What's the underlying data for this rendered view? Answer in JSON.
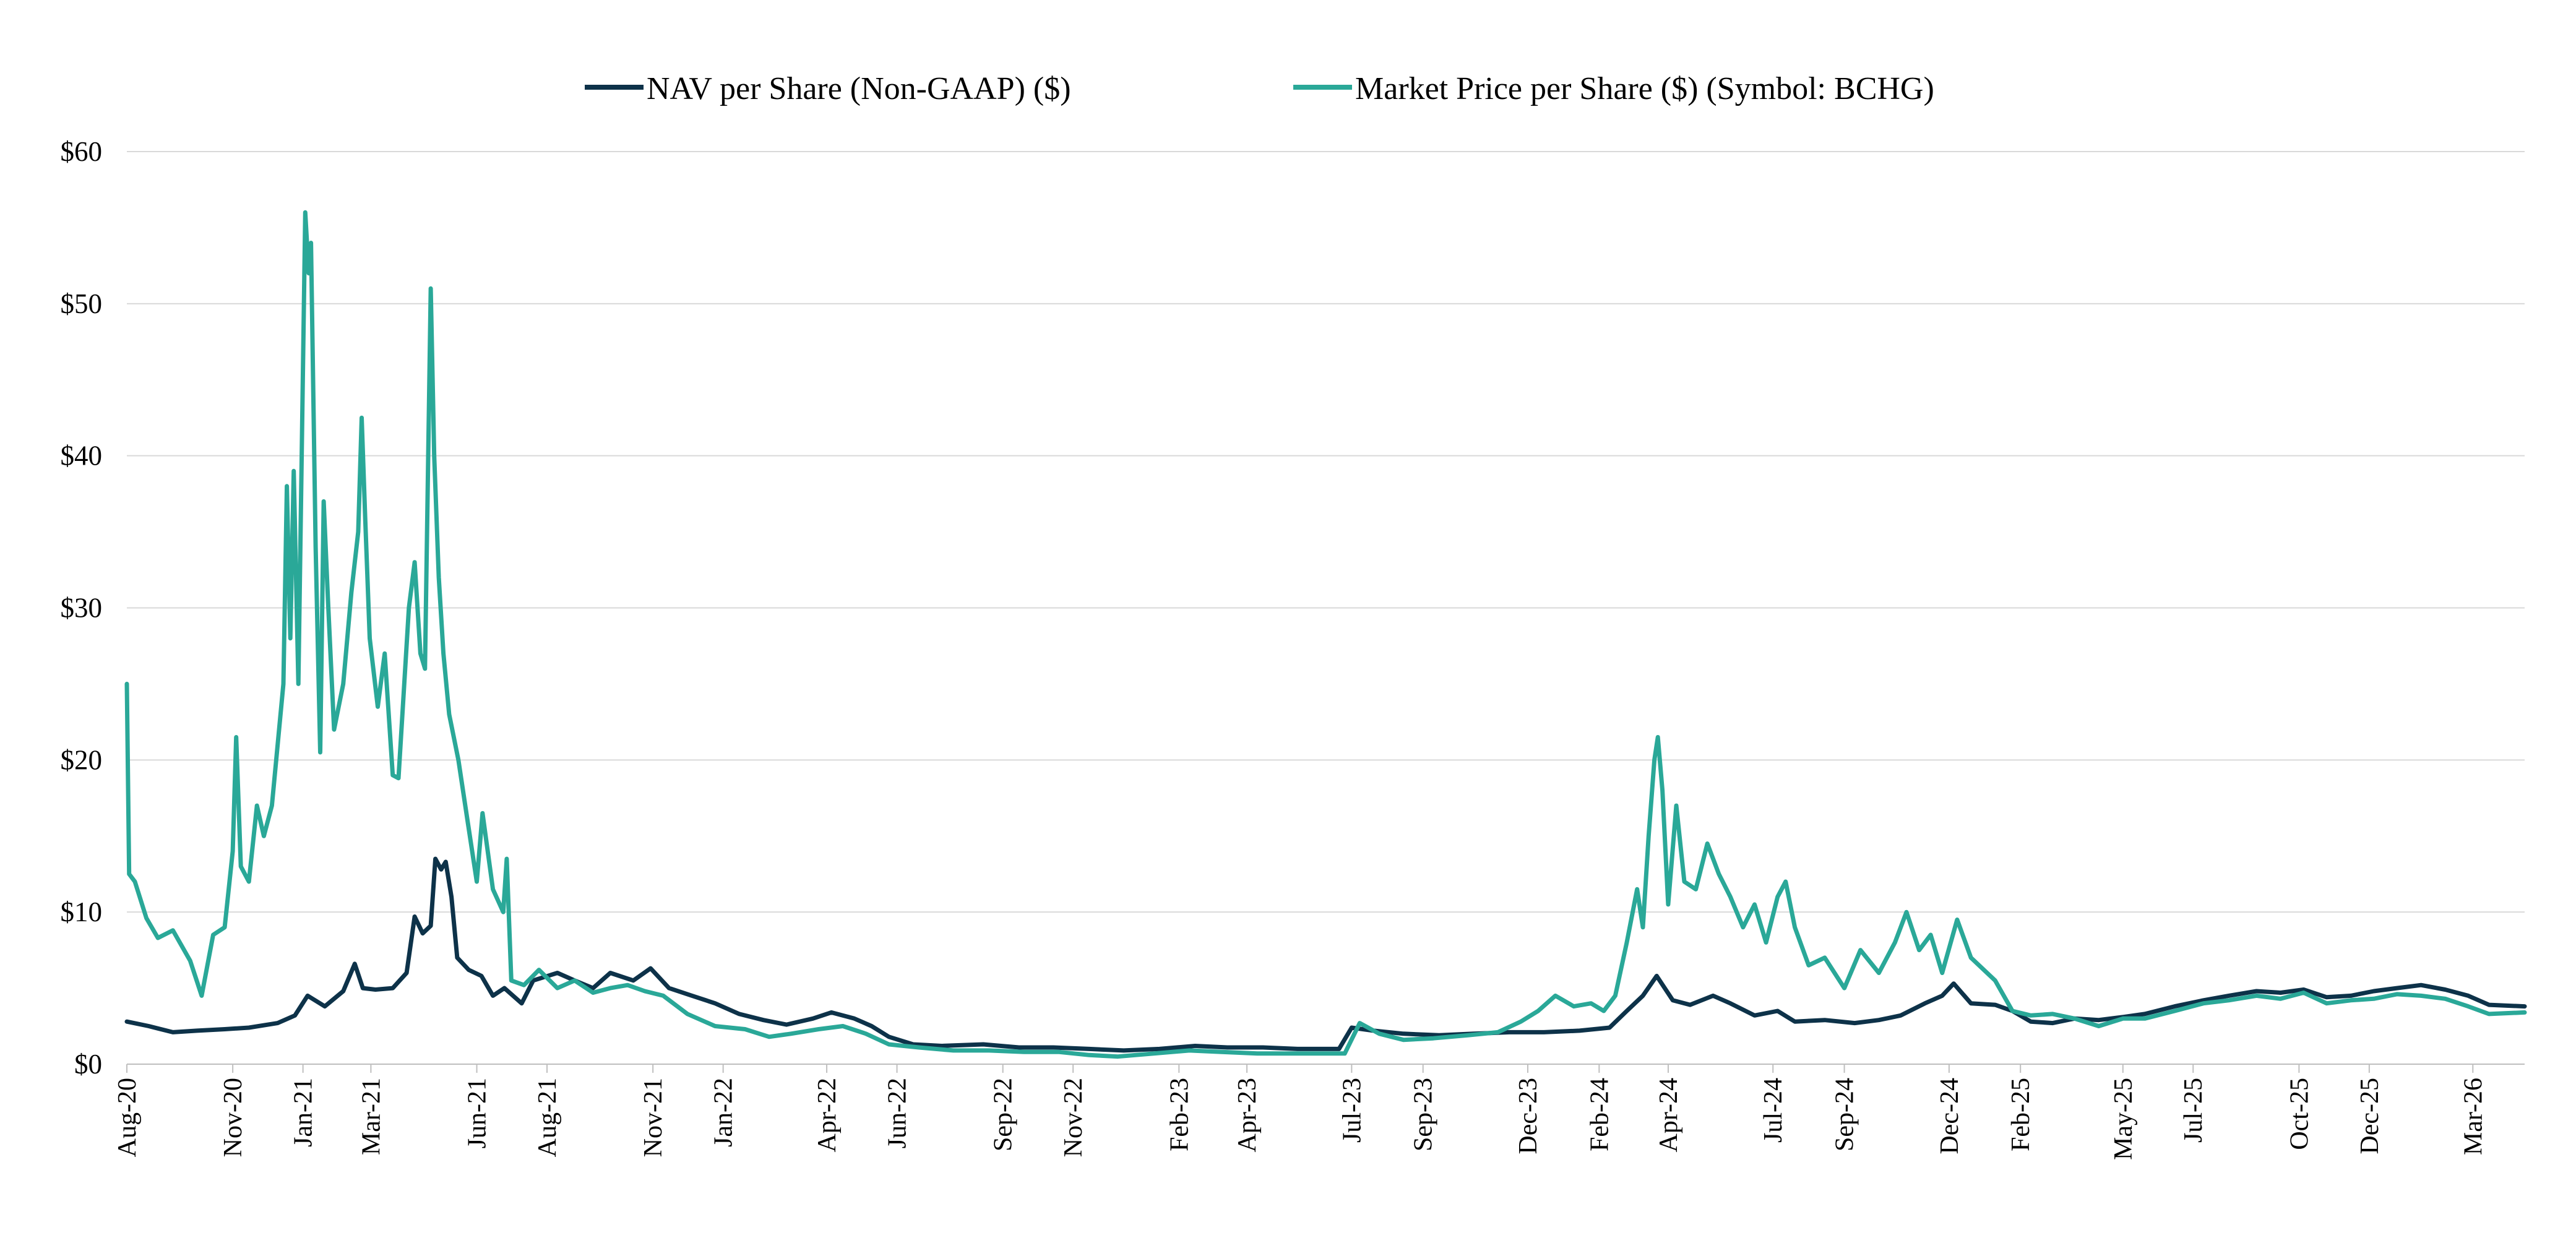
{
  "chart_data": {
    "type": "line",
    "title": "",
    "xlabel": "",
    "ylabel": "",
    "ylim": [
      0,
      60
    ],
    "y_ticks": [
      0,
      10,
      20,
      30,
      40,
      50,
      60
    ],
    "y_tick_labels": [
      "$0",
      "$10",
      "$20",
      "$30",
      "$40",
      "$50",
      "$60"
    ],
    "x_range": [
      "2020-08-01",
      "2026-04-15"
    ],
    "x_ticks": [
      "2020-08-01",
      "2020-11-01",
      "2021-01-01",
      "2021-03-01",
      "2021-06-01",
      "2021-08-01",
      "2021-11-01",
      "2022-01-01",
      "2022-04-01",
      "2022-06-01",
      "2022-09-01",
      "2022-11-01",
      "2023-02-01",
      "2023-04-01",
      "2023-07-01",
      "2023-09-01",
      "2023-12-01",
      "2024-02-01",
      "2024-04-01",
      "2024-07-01",
      "2024-09-01",
      "2024-12-01",
      "2025-02-01",
      "2025-05-01",
      "2025-07-01",
      "2025-10-01",
      "2025-12-01",
      "2026-03-01"
    ],
    "x_tick_labels": [
      "Aug-20",
      "Nov-20",
      "Jan-21",
      "Mar-21",
      "Jun-21",
      "Aug-21",
      "Nov-21",
      "Jan-22",
      "Apr-22",
      "Jun-22",
      "Sep-22",
      "Nov-22",
      "Feb-23",
      "Apr-23",
      "Jul-23",
      "Sep-23",
      "Dec-23",
      "Feb-24",
      "Apr-24",
      "Jul-24",
      "Sep-24",
      "Dec-24",
      "Feb-25",
      "May-25",
      "Jul-25",
      "Oct-25",
      "Dec-25",
      "Mar-26"
    ],
    "grid": true,
    "legend_position": "top-center",
    "series": [
      {
        "name": "NAV per Share (Non-GAAP) ($)",
        "color": "#0d3249",
        "points": [
          [
            "2020-08-01",
            2.8
          ],
          [
            "2020-08-20",
            2.5
          ],
          [
            "2020-09-10",
            2.1
          ],
          [
            "2020-10-01",
            2.2
          ],
          [
            "2020-10-25",
            2.3
          ],
          [
            "2020-11-15",
            2.4
          ],
          [
            "2020-12-10",
            2.7
          ],
          [
            "2020-12-25",
            3.2
          ],
          [
            "2021-01-05",
            4.5
          ],
          [
            "2021-01-20",
            3.8
          ],
          [
            "2021-02-05",
            4.8
          ],
          [
            "2021-02-15",
            6.6
          ],
          [
            "2021-02-22",
            5.0
          ],
          [
            "2021-03-05",
            4.9
          ],
          [
            "2021-03-20",
            5.0
          ],
          [
            "2021-04-01",
            6.0
          ],
          [
            "2021-04-08",
            9.7
          ],
          [
            "2021-04-15",
            8.6
          ],
          [
            "2021-04-22",
            9.1
          ],
          [
            "2021-04-26",
            13.5
          ],
          [
            "2021-05-01",
            12.8
          ],
          [
            "2021-05-05",
            13.3
          ],
          [
            "2021-05-10",
            11.0
          ],
          [
            "2021-05-15",
            7.0
          ],
          [
            "2021-05-25",
            6.2
          ],
          [
            "2021-06-05",
            5.8
          ],
          [
            "2021-06-15",
            4.5
          ],
          [
            "2021-06-25",
            5.0
          ],
          [
            "2021-07-10",
            4.0
          ],
          [
            "2021-07-20",
            5.5
          ],
          [
            "2021-08-10",
            6.0
          ],
          [
            "2021-08-25",
            5.5
          ],
          [
            "2021-09-10",
            5.0
          ],
          [
            "2021-09-25",
            6.0
          ],
          [
            "2021-10-15",
            5.5
          ],
          [
            "2021-10-30",
            6.3
          ],
          [
            "2021-11-15",
            5.0
          ],
          [
            "2021-12-05",
            4.5
          ],
          [
            "2021-12-25",
            4.0
          ],
          [
            "2022-01-15",
            3.3
          ],
          [
            "2022-02-05",
            2.9
          ],
          [
            "2022-02-25",
            2.6
          ],
          [
            "2022-03-20",
            3.0
          ],
          [
            "2022-04-05",
            3.4
          ],
          [
            "2022-04-25",
            3.0
          ],
          [
            "2022-05-10",
            2.5
          ],
          [
            "2022-05-25",
            1.8
          ],
          [
            "2022-06-15",
            1.3
          ],
          [
            "2022-07-10",
            1.2
          ],
          [
            "2022-08-15",
            1.3
          ],
          [
            "2022-09-15",
            1.1
          ],
          [
            "2022-10-15",
            1.1
          ],
          [
            "2022-11-15",
            1.0
          ],
          [
            "2022-12-15",
            0.9
          ],
          [
            "2023-01-15",
            1.0
          ],
          [
            "2023-02-15",
            1.2
          ],
          [
            "2023-03-15",
            1.1
          ],
          [
            "2023-04-15",
            1.1
          ],
          [
            "2023-05-15",
            1.0
          ],
          [
            "2023-06-20",
            1.0
          ],
          [
            "2023-07-01",
            2.4
          ],
          [
            "2023-07-20",
            2.2
          ],
          [
            "2023-08-15",
            2.0
          ],
          [
            "2023-09-15",
            1.9
          ],
          [
            "2023-10-15",
            2.0
          ],
          [
            "2023-11-15",
            2.1
          ],
          [
            "2023-12-15",
            2.1
          ],
          [
            "2024-01-15",
            2.2
          ],
          [
            "2024-02-10",
            2.4
          ],
          [
            "2024-02-25",
            3.5
          ],
          [
            "2024-03-10",
            4.5
          ],
          [
            "2024-03-22",
            5.8
          ],
          [
            "2024-04-05",
            4.2
          ],
          [
            "2024-04-20",
            3.9
          ],
          [
            "2024-05-10",
            4.5
          ],
          [
            "2024-05-25",
            4.0
          ],
          [
            "2024-06-15",
            3.2
          ],
          [
            "2024-07-05",
            3.5
          ],
          [
            "2024-07-20",
            2.8
          ],
          [
            "2024-08-15",
            2.9
          ],
          [
            "2024-09-10",
            2.7
          ],
          [
            "2024-10-01",
            2.9
          ],
          [
            "2024-10-20",
            3.2
          ],
          [
            "2024-11-10",
            4.0
          ],
          [
            "2024-11-25",
            4.5
          ],
          [
            "2024-12-05",
            5.3
          ],
          [
            "2024-12-20",
            4.0
          ],
          [
            "2025-01-10",
            3.9
          ],
          [
            "2025-01-25",
            3.5
          ],
          [
            "2025-02-10",
            2.8
          ],
          [
            "2025-03-01",
            2.7
          ],
          [
            "2025-03-20",
            3.0
          ],
          [
            "2025-04-10",
            2.9
          ],
          [
            "2025-05-01",
            3.1
          ],
          [
            "2025-05-20",
            3.3
          ],
          [
            "2025-06-15",
            3.8
          ],
          [
            "2025-07-10",
            4.2
          ],
          [
            "2025-08-01",
            4.5
          ],
          [
            "2025-08-25",
            4.8
          ],
          [
            "2025-09-15",
            4.7
          ],
          [
            "2025-10-05",
            4.9
          ],
          [
            "2025-10-25",
            4.4
          ],
          [
            "2025-11-15",
            4.5
          ],
          [
            "2025-12-05",
            4.8
          ],
          [
            "2025-12-25",
            5.0
          ],
          [
            "2026-01-15",
            5.2
          ],
          [
            "2026-02-05",
            4.9
          ],
          [
            "2026-02-25",
            4.5
          ],
          [
            "2026-03-15",
            3.9
          ],
          [
            "2026-04-15",
            3.8
          ]
        ]
      },
      {
        "name": "Market Price per Share ($) (Symbol: BCHG)",
        "color": "#2aa898",
        "points": [
          [
            "2020-08-01",
            25.0
          ],
          [
            "2020-08-03",
            12.5
          ],
          [
            "2020-08-08",
            12.0
          ],
          [
            "2020-08-18",
            9.6
          ],
          [
            "2020-08-28",
            8.3
          ],
          [
            "2020-09-10",
            8.8
          ],
          [
            "2020-09-25",
            6.8
          ],
          [
            "2020-10-05",
            4.5
          ],
          [
            "2020-10-15",
            8.5
          ],
          [
            "2020-10-25",
            9.0
          ],
          [
            "2020-11-01",
            14.0
          ],
          [
            "2020-11-04",
            21.5
          ],
          [
            "2020-11-08",
            13.0
          ],
          [
            "2020-11-15",
            12.0
          ],
          [
            "2020-11-22",
            17.0
          ],
          [
            "2020-11-28",
            15.0
          ],
          [
            "2020-12-05",
            17.0
          ],
          [
            "2020-12-15",
            25.0
          ],
          [
            "2020-12-18",
            38.0
          ],
          [
            "2020-12-21",
            28.0
          ],
          [
            "2020-12-24",
            39.0
          ],
          [
            "2020-12-28",
            25.0
          ],
          [
            "2021-01-03",
            56.0
          ],
          [
            "2021-01-06",
            52.0
          ],
          [
            "2021-01-08",
            54.0
          ],
          [
            "2021-01-12",
            34.0
          ],
          [
            "2021-01-16",
            20.5
          ],
          [
            "2021-01-19",
            37.0
          ],
          [
            "2021-01-23",
            30.0
          ],
          [
            "2021-01-28",
            22.0
          ],
          [
            "2021-02-05",
            25.0
          ],
          [
            "2021-02-12",
            31.0
          ],
          [
            "2021-02-18",
            35.0
          ],
          [
            "2021-02-21",
            42.5
          ],
          [
            "2021-02-24",
            36.0
          ],
          [
            "2021-02-28",
            28.0
          ],
          [
            "2021-03-07",
            23.5
          ],
          [
            "2021-03-13",
            27.0
          ],
          [
            "2021-03-20",
            19.0
          ],
          [
            "2021-03-25",
            18.8
          ],
          [
            "2021-04-03",
            30.0
          ],
          [
            "2021-04-08",
            33.0
          ],
          [
            "2021-04-13",
            27.0
          ],
          [
            "2021-04-17",
            26.0
          ],
          [
            "2021-04-22",
            51.0
          ],
          [
            "2021-04-25",
            40.0
          ],
          [
            "2021-04-29",
            32.0
          ],
          [
            "2021-05-03",
            27.0
          ],
          [
            "2021-05-08",
            23.0
          ],
          [
            "2021-05-16",
            20.0
          ],
          [
            "2021-05-24",
            16.0
          ],
          [
            "2021-06-01",
            12.0
          ],
          [
            "2021-06-06",
            16.5
          ],
          [
            "2021-06-15",
            11.5
          ],
          [
            "2021-06-24",
            10.0
          ],
          [
            "2021-06-27",
            13.5
          ],
          [
            "2021-07-01",
            5.5
          ],
          [
            "2021-07-12",
            5.2
          ],
          [
            "2021-07-25",
            6.2
          ],
          [
            "2021-08-10",
            5.0
          ],
          [
            "2021-08-25",
            5.5
          ],
          [
            "2021-09-10",
            4.7
          ],
          [
            "2021-09-25",
            5.0
          ],
          [
            "2021-10-10",
            5.2
          ],
          [
            "2021-10-25",
            4.8
          ],
          [
            "2021-11-10",
            4.5
          ],
          [
            "2021-12-01",
            3.3
          ],
          [
            "2021-12-25",
            2.5
          ],
          [
            "2022-01-20",
            2.3
          ],
          [
            "2022-02-10",
            1.8
          ],
          [
            "2022-03-01",
            2.0
          ],
          [
            "2022-03-25",
            2.3
          ],
          [
            "2022-04-15",
            2.5
          ],
          [
            "2022-05-05",
            2.0
          ],
          [
            "2022-05-25",
            1.3
          ],
          [
            "2022-06-20",
            1.1
          ],
          [
            "2022-07-20",
            0.9
          ],
          [
            "2022-08-20",
            0.9
          ],
          [
            "2022-09-20",
            0.8
          ],
          [
            "2022-10-20",
            0.8
          ],
          [
            "2022-11-15",
            0.6
          ],
          [
            "2022-12-10",
            0.5
          ],
          [
            "2023-01-10",
            0.7
          ],
          [
            "2023-02-10",
            0.9
          ],
          [
            "2023-03-10",
            0.8
          ],
          [
            "2023-04-10",
            0.7
          ],
          [
            "2023-05-10",
            0.7
          ],
          [
            "2023-06-25",
            0.7
          ],
          [
            "2023-07-08",
            2.7
          ],
          [
            "2023-07-25",
            2.0
          ],
          [
            "2023-08-15",
            1.6
          ],
          [
            "2023-09-10",
            1.7
          ],
          [
            "2023-10-10",
            1.9
          ],
          [
            "2023-11-05",
            2.1
          ],
          [
            "2023-11-25",
            2.8
          ],
          [
            "2023-12-10",
            3.5
          ],
          [
            "2023-12-25",
            4.5
          ],
          [
            "2024-01-10",
            3.8
          ],
          [
            "2024-01-25",
            4.0
          ],
          [
            "2024-02-05",
            3.5
          ],
          [
            "2024-02-15",
            4.5
          ],
          [
            "2024-02-25",
            8.0
          ],
          [
            "2024-03-05",
            11.5
          ],
          [
            "2024-03-10",
            9.0
          ],
          [
            "2024-03-15",
            15.0
          ],
          [
            "2024-03-20",
            20.0
          ],
          [
            "2024-03-23",
            21.5
          ],
          [
            "2024-03-27",
            18.0
          ],
          [
            "2024-04-01",
            10.5
          ],
          [
            "2024-04-08",
            17.0
          ],
          [
            "2024-04-15",
            12.0
          ],
          [
            "2024-04-25",
            11.5
          ],
          [
            "2024-05-05",
            14.5
          ],
          [
            "2024-05-15",
            12.5
          ],
          [
            "2024-05-25",
            11.0
          ],
          [
            "2024-06-05",
            9.0
          ],
          [
            "2024-06-15",
            10.5
          ],
          [
            "2024-06-25",
            8.0
          ],
          [
            "2024-07-05",
            11.0
          ],
          [
            "2024-07-12",
            12.0
          ],
          [
            "2024-07-20",
            9.0
          ],
          [
            "2024-08-01",
            6.5
          ],
          [
            "2024-08-15",
            7.0
          ],
          [
            "2024-09-01",
            5.0
          ],
          [
            "2024-09-15",
            7.5
          ],
          [
            "2024-10-01",
            6.0
          ],
          [
            "2024-10-15",
            8.0
          ],
          [
            "2024-10-25",
            10.0
          ],
          [
            "2024-11-05",
            7.5
          ],
          [
            "2024-11-15",
            8.5
          ],
          [
            "2024-11-25",
            6.0
          ],
          [
            "2024-12-08",
            9.5
          ],
          [
            "2024-12-20",
            7.0
          ],
          [
            "2025-01-10",
            5.5
          ],
          [
            "2025-01-25",
            3.5
          ],
          [
            "2025-02-10",
            3.2
          ],
          [
            "2025-03-01",
            3.3
          ],
          [
            "2025-03-20",
            3.0
          ],
          [
            "2025-04-10",
            2.5
          ],
          [
            "2025-05-01",
            3.0
          ],
          [
            "2025-05-20",
            3.0
          ],
          [
            "2025-06-15",
            3.5
          ],
          [
            "2025-07-10",
            4.0
          ],
          [
            "2025-08-01",
            4.2
          ],
          [
            "2025-08-25",
            4.5
          ],
          [
            "2025-09-15",
            4.3
          ],
          [
            "2025-10-05",
            4.7
          ],
          [
            "2025-10-25",
            4.0
          ],
          [
            "2025-11-15",
            4.2
          ],
          [
            "2025-12-05",
            4.3
          ],
          [
            "2025-12-25",
            4.6
          ],
          [
            "2026-01-15",
            4.5
          ],
          [
            "2026-02-05",
            4.3
          ],
          [
            "2026-02-25",
            3.8
          ],
          [
            "2026-03-15",
            3.3
          ],
          [
            "2026-04-15",
            3.4
          ]
        ]
      }
    ]
  }
}
